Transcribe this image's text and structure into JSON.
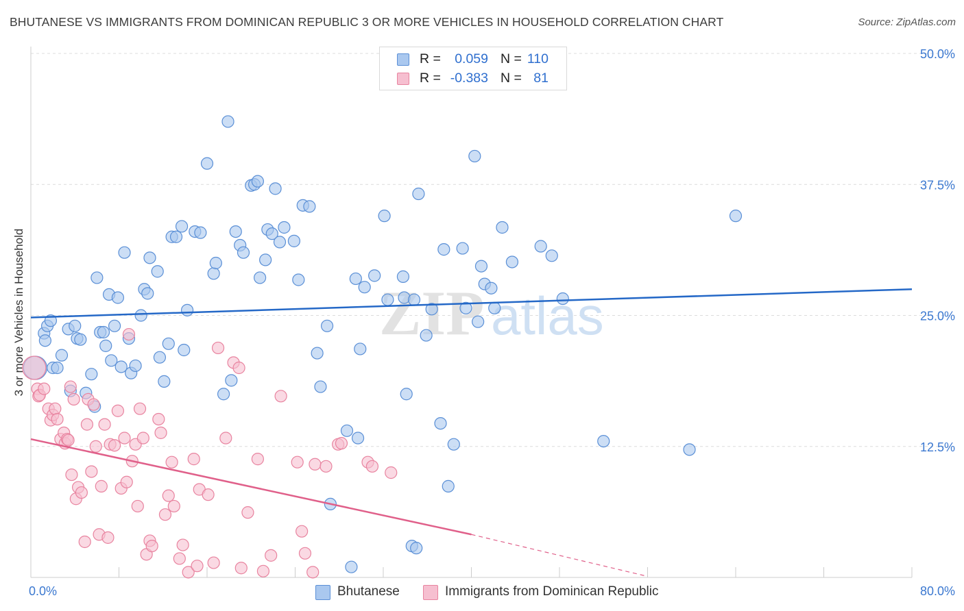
{
  "title": "BHUTANESE VS IMMIGRANTS FROM DOMINICAN REPUBLIC 3 OR MORE VEHICLES IN HOUSEHOLD CORRELATION CHART",
  "source": "Source: ZipAtlas.com",
  "watermark": {
    "zip": "ZIP",
    "atlas": "atlas"
  },
  "legend": {
    "rows": [
      {
        "r_label": "R =",
        "r_value": "0.059",
        "n_label": "N =",
        "n_value": "110"
      },
      {
        "r_label": "R =",
        "r_value": "-0.383",
        "n_label": "N =",
        "n_value": "81"
      }
    ]
  },
  "bottom_legend": [
    "Bhutanese",
    "Immigrants from Dominican Republic"
  ],
  "colors": {
    "blue_fill": "#aac8ef",
    "blue_stroke": "#5a8fd6",
    "blue_line": "#2468c7",
    "pink_fill": "#f6bfd0",
    "pink_stroke": "#e8839f",
    "pink_line": "#e0608a",
    "grid": "#dcdcdc",
    "axis_text": "#3b78d0"
  },
  "chart_data": {
    "type": "scatter",
    "title": "BHUTANESE VS IMMIGRANTS FROM DOMINICAN REPUBLIC 3 OR MORE VEHICLES IN HOUSEHOLD CORRELATION CHART",
    "xlabel": "",
    "ylabel": "3 or more Vehicles in Household",
    "xlim": [
      0,
      80
    ],
    "ylim": [
      0,
      50
    ],
    "x_tick_labels": [
      "0.0%",
      "80.0%"
    ],
    "y_ticks": [
      12.5,
      25.0,
      37.5,
      50.0
    ],
    "y_tick_labels": [
      "12.5%",
      "25.0%",
      "37.5%",
      "50.0%"
    ],
    "grid": true,
    "legend_position": "top-center",
    "series": [
      {
        "name": "Bhutanese",
        "r": 0.059,
        "n": 110,
        "trend": {
          "x": [
            0,
            80
          ],
          "y": [
            24.8,
            27.5
          ]
        },
        "points": [
          [
            0.4,
            20
          ],
          [
            1.2,
            23.3
          ],
          [
            1.3,
            22.6
          ],
          [
            1.5,
            24
          ],
          [
            1.8,
            24.5
          ],
          [
            2,
            20
          ],
          [
            2.4,
            20
          ],
          [
            2.8,
            21.2
          ],
          [
            3.4,
            23.7
          ],
          [
            3.6,
            17.8
          ],
          [
            4,
            24
          ],
          [
            4.2,
            22.8
          ],
          [
            4.5,
            22.7
          ],
          [
            5,
            17.6
          ],
          [
            5.5,
            19.4
          ],
          [
            5.8,
            16.3
          ],
          [
            6,
            28.6
          ],
          [
            6.3,
            23.4
          ],
          [
            6.6,
            23.4
          ],
          [
            6.8,
            22.1
          ],
          [
            7.1,
            27
          ],
          [
            7.3,
            20.7
          ],
          [
            7.6,
            24
          ],
          [
            7.9,
            26.7
          ],
          [
            8.2,
            20.1
          ],
          [
            8.5,
            31
          ],
          [
            8.9,
            22.8
          ],
          [
            9.1,
            19.5
          ],
          [
            9.5,
            20.2
          ],
          [
            10,
            25
          ],
          [
            10.3,
            27.5
          ],
          [
            10.6,
            27.1
          ],
          [
            10.8,
            30.5
          ],
          [
            11.5,
            29.2
          ],
          [
            11.7,
            21
          ],
          [
            12.1,
            18.7
          ],
          [
            12.5,
            22.3
          ],
          [
            12.8,
            32.5
          ],
          [
            13.2,
            32.5
          ],
          [
            13.7,
            33.5
          ],
          [
            13.9,
            21.7
          ],
          [
            14.2,
            25.5
          ],
          [
            14.9,
            33
          ],
          [
            15.4,
            32.9
          ],
          [
            16,
            39.5
          ],
          [
            16.6,
            29
          ],
          [
            16.8,
            30
          ],
          [
            17.5,
            17.5
          ],
          [
            17.9,
            43.5
          ],
          [
            18.2,
            18.8
          ],
          [
            18.6,
            33
          ],
          [
            19,
            31.7
          ],
          [
            19.3,
            31
          ],
          [
            20,
            37.4
          ],
          [
            20.3,
            37.5
          ],
          [
            20.6,
            37.8
          ],
          [
            20.8,
            28.6
          ],
          [
            21.3,
            30.3
          ],
          [
            21.5,
            33.2
          ],
          [
            21.9,
            32.8
          ],
          [
            22.2,
            37.1
          ],
          [
            22.6,
            32
          ],
          [
            23,
            33.4
          ],
          [
            23.9,
            32.1
          ],
          [
            24.3,
            28.4
          ],
          [
            24.7,
            35.5
          ],
          [
            25.3,
            35.4
          ],
          [
            26,
            21.4
          ],
          [
            26.3,
            18.2
          ],
          [
            26.9,
            24
          ],
          [
            27.2,
            7
          ],
          [
            28.7,
            14
          ],
          [
            29.1,
            1
          ],
          [
            29.5,
            28.5
          ],
          [
            29.7,
            13.3
          ],
          [
            29.9,
            21.8
          ],
          [
            30.3,
            27.7
          ],
          [
            31.2,
            28.8
          ],
          [
            32.1,
            34.5
          ],
          [
            32.4,
            26.5
          ],
          [
            33.8,
            28.7
          ],
          [
            33.9,
            26.7
          ],
          [
            34.1,
            17.5
          ],
          [
            34.6,
            3
          ],
          [
            34.8,
            26.5
          ],
          [
            35,
            2.8
          ],
          [
            35.2,
            36.6
          ],
          [
            35.9,
            23.1
          ],
          [
            36.4,
            25.6
          ],
          [
            37.2,
            14.7
          ],
          [
            37.5,
            31.3
          ],
          [
            37.9,
            8.7
          ],
          [
            38.4,
            12.7
          ],
          [
            39.2,
            31.4
          ],
          [
            39.5,
            25.7
          ],
          [
            40.3,
            40.2
          ],
          [
            40.6,
            24.4
          ],
          [
            40.9,
            29.7
          ],
          [
            41.2,
            28
          ],
          [
            41.8,
            27.6
          ],
          [
            42.1,
            25.7
          ],
          [
            42.8,
            33.4
          ],
          [
            43.7,
            30.1
          ],
          [
            46.3,
            31.6
          ],
          [
            47.3,
            30.7
          ],
          [
            48.3,
            26.6
          ],
          [
            52,
            13
          ],
          [
            59.8,
            12.2
          ],
          [
            64,
            34.5
          ]
        ]
      },
      {
        "name": "Immigrants from Dominican Republic",
        "r": -0.383,
        "n": 81,
        "trend": {
          "x": [
            0,
            40
          ],
          "y": [
            13.2,
            4.1
          ]
        },
        "trend_dashed": {
          "x": [
            40,
            56
          ],
          "y": [
            4.1,
            0.1
          ]
        },
        "points": [
          [
            0.3,
            20
          ],
          [
            0.6,
            18
          ],
          [
            0.7,
            17.3
          ],
          [
            0.8,
            17.4
          ],
          [
            1.2,
            18
          ],
          [
            1.6,
            16.1
          ],
          [
            1.8,
            15
          ],
          [
            2,
            15.5
          ],
          [
            2.2,
            16.1
          ],
          [
            2.4,
            15.1
          ],
          [
            2.7,
            13.2
          ],
          [
            3,
            13.8
          ],
          [
            3.1,
            12.8
          ],
          [
            3.3,
            13.2
          ],
          [
            3.4,
            13.1
          ],
          [
            3.6,
            18.2
          ],
          [
            3.7,
            9.8
          ],
          [
            3.9,
            17
          ],
          [
            4.1,
            7.5
          ],
          [
            4.3,
            8.6
          ],
          [
            4.6,
            8.1
          ],
          [
            4.9,
            3.4
          ],
          [
            5.1,
            14.6
          ],
          [
            5.2,
            17
          ],
          [
            5.5,
            10.1
          ],
          [
            5.7,
            16.5
          ],
          [
            5.9,
            12.5
          ],
          [
            6.2,
            4.1
          ],
          [
            6.4,
            8.7
          ],
          [
            6.7,
            14.6
          ],
          [
            7,
            3.8
          ],
          [
            7.2,
            12.7
          ],
          [
            7.6,
            12.6
          ],
          [
            7.9,
            15.9
          ],
          [
            8.2,
            8.5
          ],
          [
            8.5,
            13.3
          ],
          [
            8.7,
            9.1
          ],
          [
            8.9,
            23.2
          ],
          [
            9.2,
            11.1
          ],
          [
            9.5,
            12.7
          ],
          [
            9.7,
            6.8
          ],
          [
            9.9,
            16.1
          ],
          [
            10.2,
            13.3
          ],
          [
            10.5,
            2.2
          ],
          [
            10.8,
            3.5
          ],
          [
            11,
            3
          ],
          [
            11.6,
            15.1
          ],
          [
            11.8,
            13.8
          ],
          [
            12.2,
            6
          ],
          [
            12.5,
            7.8
          ],
          [
            12.8,
            11
          ],
          [
            13,
            6.8
          ],
          [
            13.5,
            1.8
          ],
          [
            13.8,
            3.1
          ],
          [
            14.3,
            0.5
          ],
          [
            14.8,
            11.3
          ],
          [
            15.1,
            1.1
          ],
          [
            15.3,
            8.4
          ],
          [
            16.1,
            7.9
          ],
          [
            16.6,
            1.4
          ],
          [
            17,
            21.9
          ],
          [
            17.7,
            13.3
          ],
          [
            18.4,
            20.5
          ],
          [
            18.9,
            20
          ],
          [
            19.1,
            0.9
          ],
          [
            19.7,
            6.2
          ],
          [
            20.6,
            11.3
          ],
          [
            21.1,
            0.6
          ],
          [
            21.8,
            2.1
          ],
          [
            22.7,
            17.3
          ],
          [
            24.2,
            11
          ],
          [
            24.6,
            4.4
          ],
          [
            24.9,
            2.3
          ],
          [
            25.6,
            0.5
          ],
          [
            25.8,
            10.8
          ],
          [
            26.8,
            10.6
          ],
          [
            27.9,
            12.7
          ],
          [
            28.2,
            12.8
          ],
          [
            30.6,
            11
          ],
          [
            31,
            10.6
          ],
          [
            32.7,
            10
          ]
        ]
      }
    ]
  }
}
